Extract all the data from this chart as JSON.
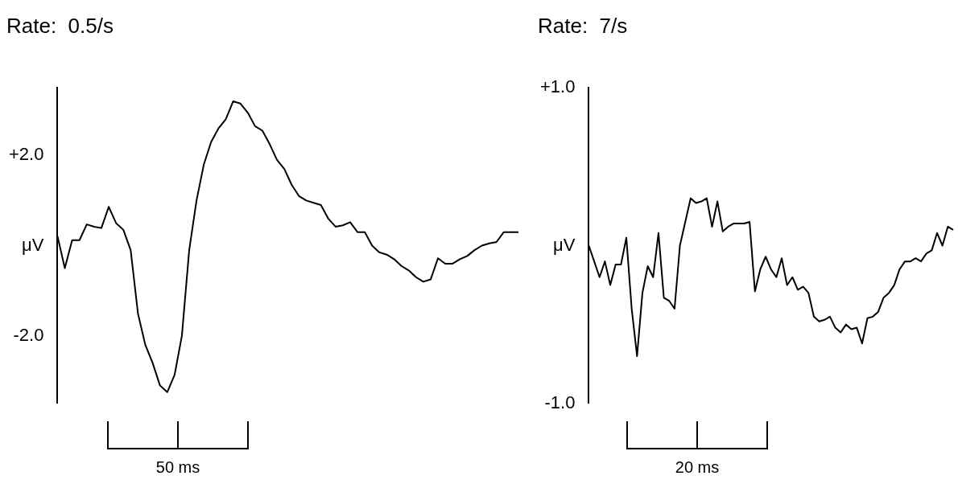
{
  "chart_data": [
    {
      "type": "line",
      "title": "Rate:  0.5/s",
      "categories": [
        null,
        null,
        null,
        null,
        null,
        null,
        null,
        null,
        null,
        null,
        null,
        null,
        null,
        null,
        null,
        null,
        null,
        null,
        null,
        null,
        null,
        null,
        null,
        null,
        null,
        null,
        null,
        null,
        null,
        null,
        null,
        null,
        null,
        null,
        null,
        null,
        null,
        null,
        null,
        null,
        null,
        null,
        null,
        null,
        null,
        null,
        null,
        null,
        null,
        null,
        null,
        null,
        null,
        null,
        null,
        null,
        null,
        null,
        null,
        null,
        null,
        null,
        null,
        null
      ],
      "series": [
        {
          "color": "#000000",
          "values": [
            0.21,
            -0.5,
            0.12,
            0.12,
            0.47,
            0.42,
            0.39,
            0.86,
            0.5,
            0.35,
            -0.1,
            -1.51,
            -2.2,
            -2.6,
            -3.1,
            -3.25,
            -2.87,
            -2.0,
            -0.1,
            1.0,
            1.8,
            2.3,
            2.6,
            2.8,
            3.2,
            3.15,
            2.95,
            2.65,
            2.55,
            2.25,
            1.9,
            1.7,
            1.35,
            1.1,
            1.0,
            0.95,
            0.9,
            0.6,
            0.42,
            0.45,
            0.52,
            0.3,
            0.3,
            0.0,
            -0.15,
            -0.2,
            -0.3,
            -0.45,
            -0.55,
            -0.7,
            -0.8,
            -0.75,
            -0.28,
            -0.4,
            -0.4,
            -0.3,
            -0.23,
            -0.1,
            0.0,
            0.05,
            0.08,
            0.3,
            0.3,
            0.3
          ]
        }
      ],
      "ylim": [
        -3.5,
        3.5
      ],
      "yticks": [
        {
          "value": 2,
          "label": "+2.0"
        },
        {
          "value": 0,
          "label": "μV"
        },
        {
          "value": -2,
          "label": "-2.0"
        }
      ],
      "grid": false,
      "legend": false,
      "marker": "none",
      "line_style": "solid",
      "tick_labels": "y",
      "annotations": [
        "50 ms"
      ]
    },
    {
      "type": "line",
      "title": "Rate:  7/s",
      "categories": [
        null,
        null,
        null,
        null,
        null,
        null,
        null,
        null,
        null,
        null,
        null,
        null,
        null,
        null,
        null,
        null,
        null,
        null,
        null,
        null,
        null,
        null,
        null,
        null,
        null,
        null,
        null,
        null,
        null,
        null,
        null,
        null,
        null,
        null,
        null,
        null,
        null,
        null,
        null,
        null,
        null,
        null,
        null,
        null,
        null,
        null,
        null,
        null,
        null,
        null,
        null,
        null,
        null,
        null,
        null,
        null,
        null,
        null,
        null,
        null,
        null,
        null,
        null,
        null,
        null,
        null,
        null,
        null,
        null
      ],
      "series": [
        {
          "color": "#000000",
          "values": [
            0.0,
            -0.1,
            -0.2,
            -0.1,
            -0.25,
            -0.12,
            -0.12,
            0.05,
            -0.4,
            -0.7,
            -0.3,
            -0.13,
            -0.2,
            0.08,
            -0.33,
            -0.35,
            -0.4,
            0.0,
            0.15,
            0.3,
            0.27,
            0.28,
            0.3,
            0.12,
            0.28,
            0.09,
            0.12,
            0.14,
            0.14,
            0.14,
            0.15,
            -0.29,
            -0.15,
            -0.07,
            -0.15,
            -0.2,
            -0.08,
            -0.25,
            -0.2,
            -0.28,
            -0.26,
            -0.3,
            -0.45,
            -0.48,
            -0.47,
            -0.45,
            -0.52,
            -0.55,
            -0.5,
            -0.53,
            -0.52,
            -0.62,
            -0.46,
            -0.45,
            -0.42,
            -0.33,
            -0.3,
            -0.25,
            -0.15,
            -0.1,
            -0.1,
            -0.08,
            -0.1,
            -0.05,
            -0.03,
            0.08,
            0.0,
            0.12,
            0.1
          ]
        }
      ],
      "ylim": [
        -1.0,
        1.0
      ],
      "yticks": [
        {
          "value": 1,
          "label": "+1.0"
        },
        {
          "value": 0,
          "label": "μV"
        },
        {
          "value": -1,
          "label": "-1.0"
        }
      ],
      "grid": false,
      "legend": false,
      "marker": "none",
      "line_style": "solid",
      "tick_labels": "y",
      "annotations": [
        "20 ms"
      ]
    }
  ]
}
